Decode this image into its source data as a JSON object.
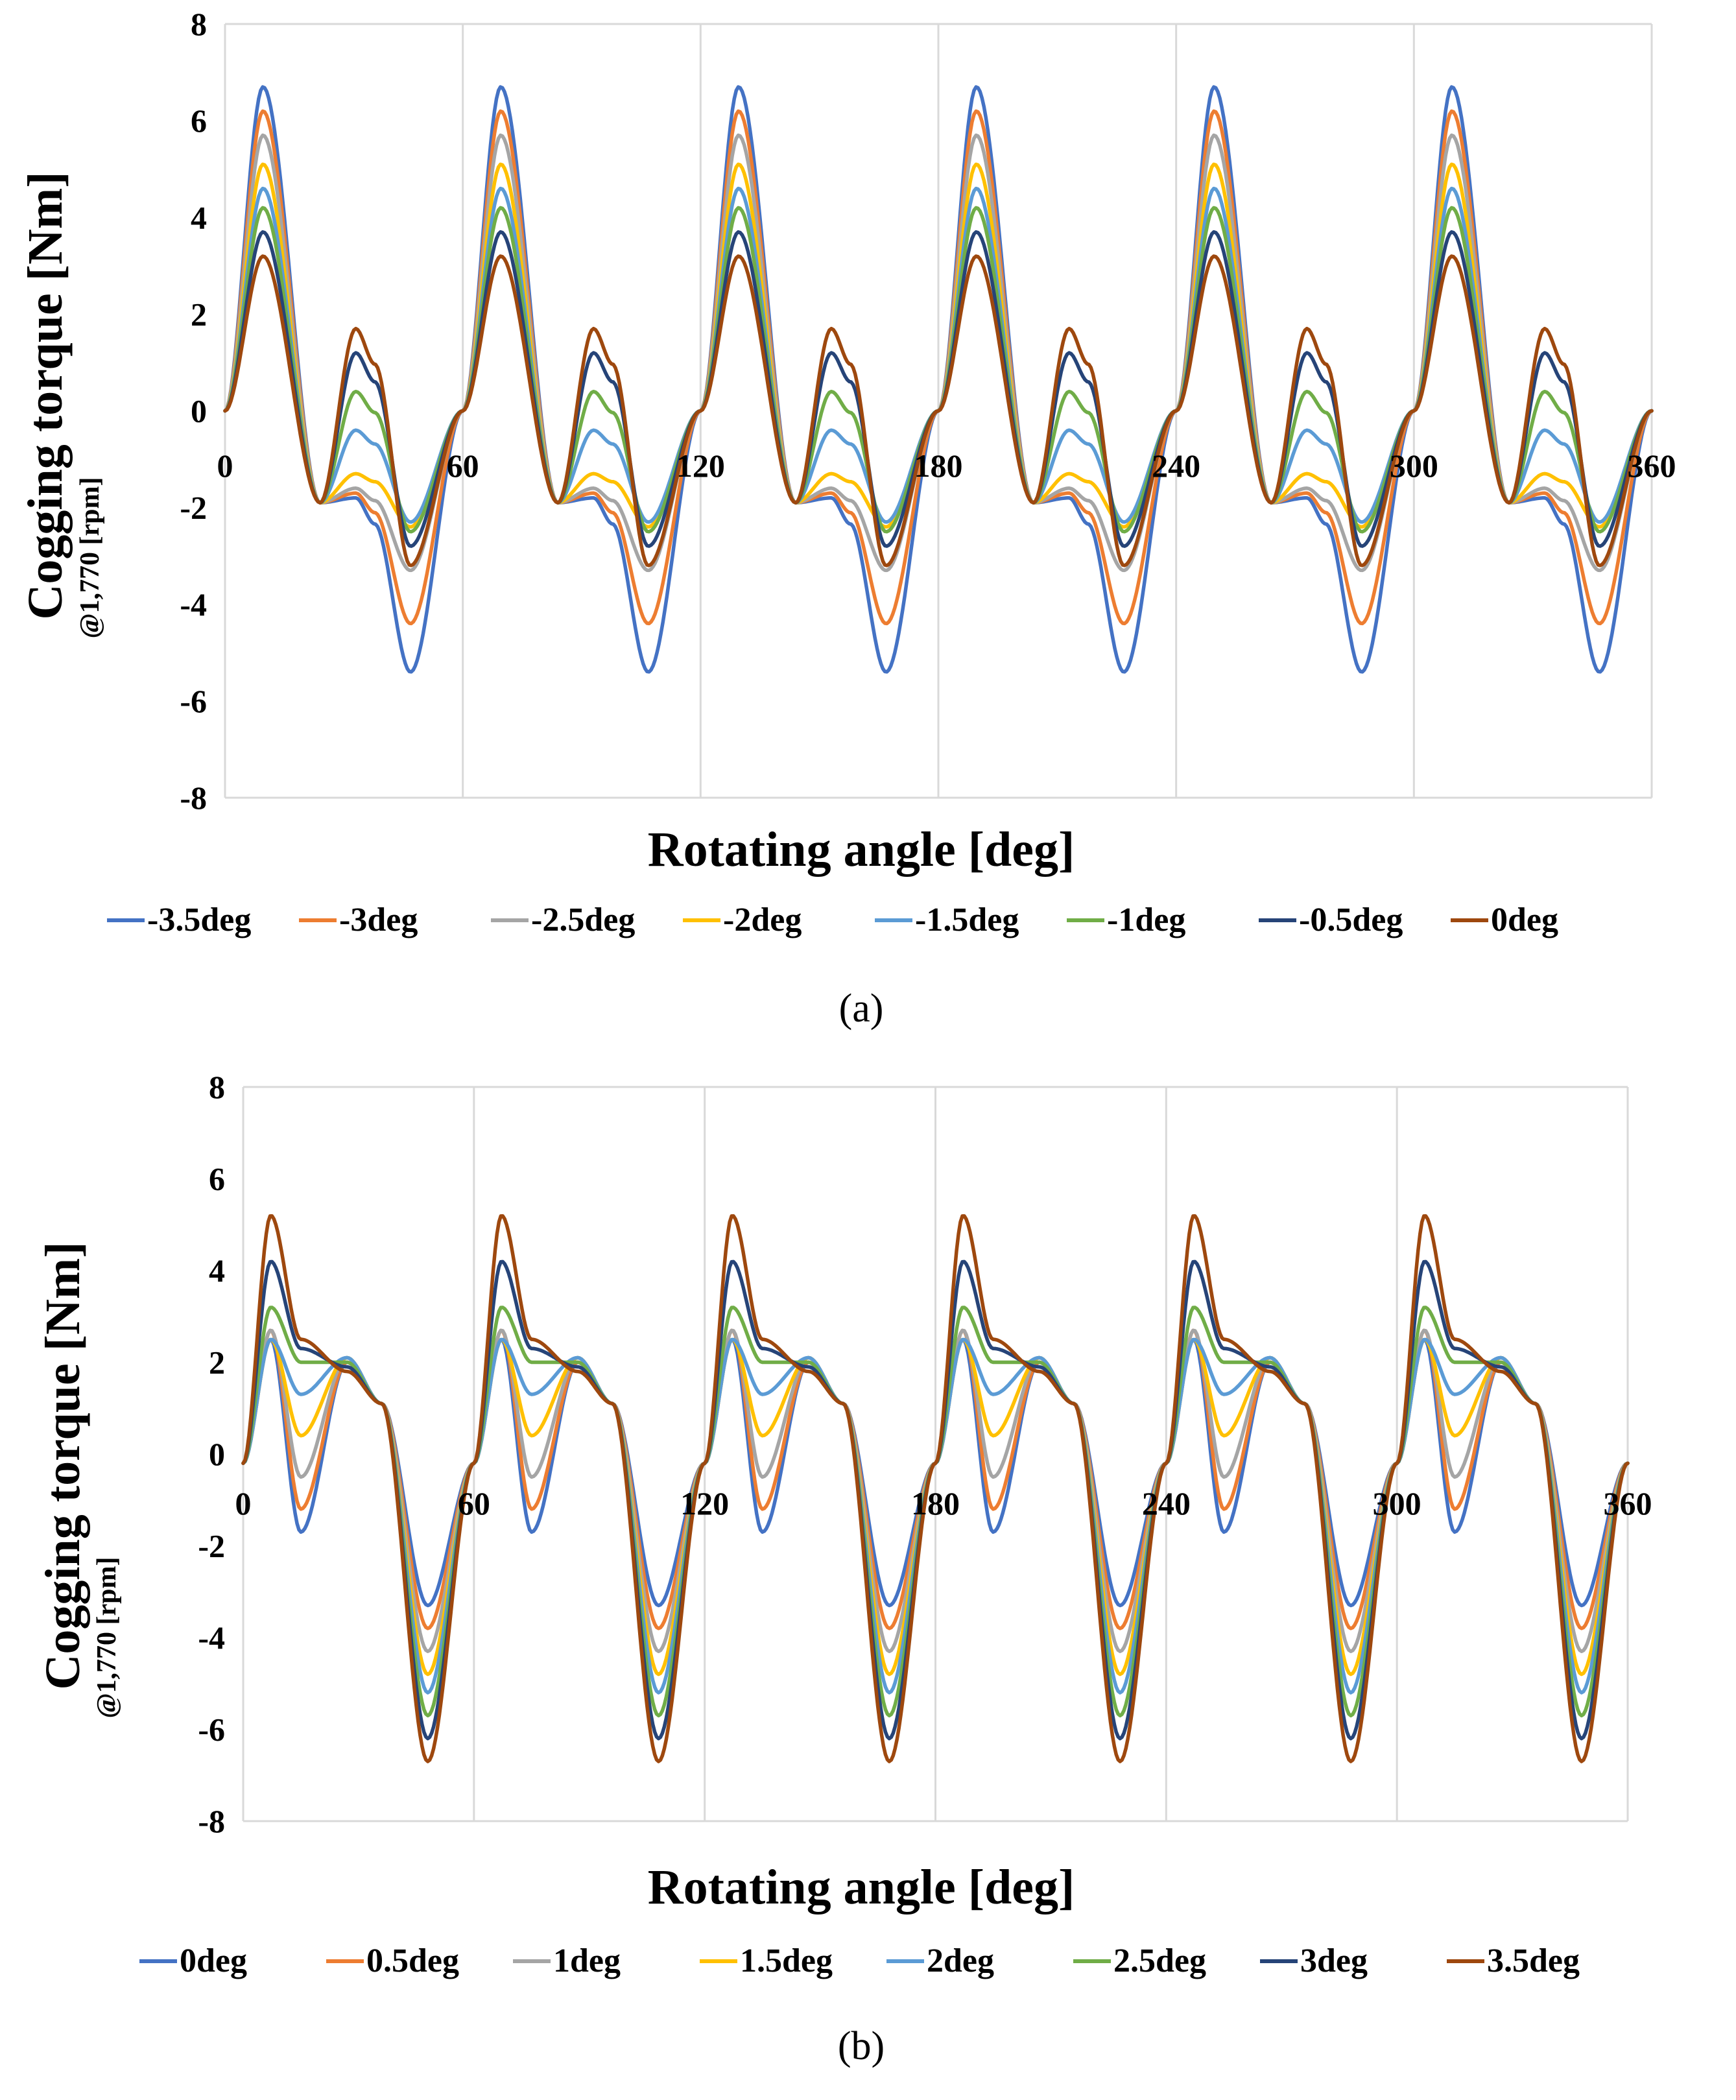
{
  "chart_data": [
    {
      "type": "line",
      "panel_label": "(a)",
      "xlabel": "Rotating angle [deg]",
      "ylabel": "Cogging torque [Nm]",
      "ylabel_sub": "@1,770 [rpm]",
      "xlim": [
        0,
        360
      ],
      "ylim": [
        -8,
        8
      ],
      "xticks": [
        "0",
        "60",
        "120",
        "180",
        "240",
        "300",
        "360"
      ],
      "yticks": [
        "8",
        "6",
        "4",
        "2",
        "0",
        "-2",
        "-4",
        "-6",
        "-8"
      ],
      "grid": "vertical",
      "legend_position": "bottom",
      "period_deg": 60,
      "series": [
        {
          "name": "-3.5deg",
          "color": "#4472C4",
          "peak": 6.7,
          "trough": -5.4,
          "hump": -1.8
        },
        {
          "name": "-3deg",
          "color": "#ED7D31",
          "peak": 6.2,
          "trough": -4.4,
          "hump": -1.7
        },
        {
          "name": "-2.5deg",
          "color": "#A5A5A5",
          "peak": 5.7,
          "trough": -3.3,
          "hump": -1.6
        },
        {
          "name": "-2deg",
          "color": "#FFC000",
          "peak": 5.1,
          "trough": -2.4,
          "hump": -1.3
        },
        {
          "name": "-1.5deg",
          "color": "#5B9BD5",
          "peak": 4.6,
          "trough": -2.3,
          "hump": -0.4
        },
        {
          "name": "-1deg",
          "color": "#70AD47",
          "peak": 4.2,
          "trough": -2.5,
          "hump": 0.4
        },
        {
          "name": "-0.5deg",
          "color": "#264478",
          "peak": 3.7,
          "trough": -2.8,
          "hump": 1.2
        },
        {
          "name": "0deg",
          "color": "#9E480E",
          "peak": 3.2,
          "trough": -3.2,
          "hump": 1.7
        }
      ]
    },
    {
      "type": "line",
      "panel_label": "(b)",
      "xlabel": "Rotating angle [deg]",
      "ylabel": "Cogging torque [Nm]",
      "ylabel_sub": "@1,770 [rpm]",
      "xlim": [
        0,
        360
      ],
      "ylim": [
        -8,
        8
      ],
      "xticks": [
        "0",
        "60",
        "120",
        "180",
        "240",
        "300",
        "360"
      ],
      "yticks": [
        "8",
        "6",
        "4",
        "2",
        "0",
        "-2",
        "-4",
        "-6",
        "-8"
      ],
      "grid": "vertical",
      "legend_position": "bottom",
      "period_deg": 60,
      "series": [
        {
          "name": "0deg",
          "color": "#4472C4",
          "peak": 2.5,
          "dip": -1.7,
          "plateau": 2.0,
          "trough": -3.3
        },
        {
          "name": "0.5deg",
          "color": "#ED7D31",
          "peak": 2.7,
          "dip": -1.2,
          "plateau": 2.0,
          "trough": -3.8
        },
        {
          "name": "1deg",
          "color": "#A5A5A5",
          "peak": 2.7,
          "dip": -0.5,
          "plateau": 2.1,
          "trough": -4.3
        },
        {
          "name": "1.5deg",
          "color": "#FFC000",
          "peak": 2.5,
          "dip": 0.4,
          "plateau": 2.1,
          "trough": -4.8
        },
        {
          "name": "2deg",
          "color": "#5B9BD5",
          "peak": 2.5,
          "dip": 1.3,
          "plateau": 2.1,
          "trough": -5.2
        },
        {
          "name": "2.5deg",
          "color": "#70AD47",
          "peak": 3.2,
          "dip": 2.0,
          "plateau": 2.0,
          "trough": -5.7
        },
        {
          "name": "3deg",
          "color": "#264478",
          "peak": 4.2,
          "dip": 2.3,
          "plateau": 1.9,
          "trough": -6.2
        },
        {
          "name": "3.5deg",
          "color": "#9E480E",
          "peak": 5.2,
          "dip": 2.5,
          "plateau": 1.8,
          "trough": -6.7
        }
      ]
    }
  ]
}
